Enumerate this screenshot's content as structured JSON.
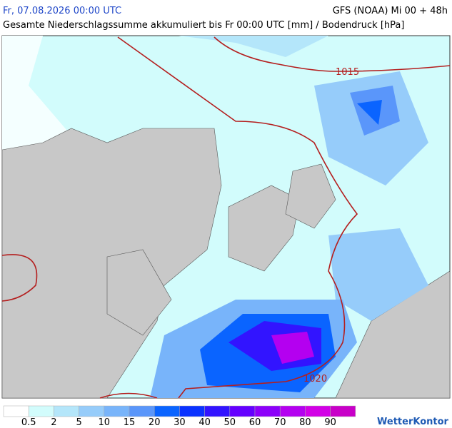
{
  "header": {
    "date": "Fr, 07.08.2026 00:00 UTC",
    "model": "GFS (NOAA) Mi 00 + 48h",
    "subtitle": "Gesamte Niederschlagssumme akkumuliert bis Fr 00:00 UTC [mm] / Bodendruck [hPa]"
  },
  "map": {
    "isobar_labels": [
      "1015",
      "1020"
    ]
  },
  "legend": {
    "labels": [
      "0.5",
      "2",
      "5",
      "10",
      "15",
      "20",
      "30",
      "40",
      "50",
      "60",
      "70",
      "80",
      "90"
    ],
    "colors": [
      "#ffffff",
      "#d2fcfc",
      "#b4e6fa",
      "#96ccfa",
      "#78b4fa",
      "#5a96fa",
      "#0a64ff",
      "#0a32ff",
      "#3214ff",
      "#6400ff",
      "#8c00fa",
      "#b400f0",
      "#d200e6",
      "#c800c8"
    ]
  },
  "logo": "WetterKontor"
}
